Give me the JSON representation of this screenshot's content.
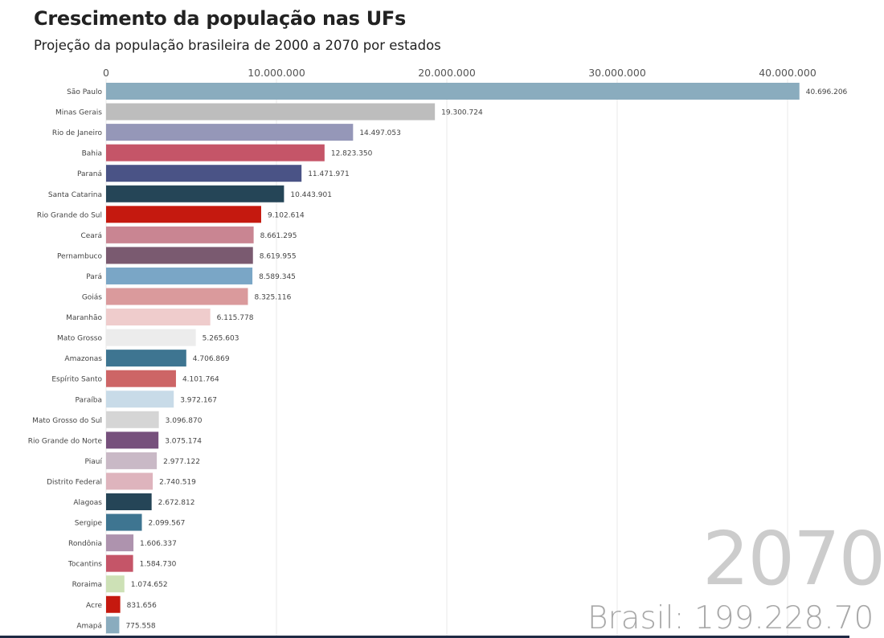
{
  "header": {
    "title": "Crescimento da população nas UFs",
    "subtitle": "Projeção da população brasileira de 2000 a 2070 por estados"
  },
  "overlay": {
    "year": "2070",
    "total": "Brasil: 199.228.70"
  },
  "chart_data": {
    "type": "bar",
    "orientation": "horizontal",
    "title": "Crescimento da população nas UFs",
    "subtitle": "Projeção da população brasileira de 2000 a 2070 por estados",
    "xlim": [
      0,
      42400000
    ],
    "x_ticks": [
      0,
      10000000,
      20000000,
      30000000,
      40000000
    ],
    "x_tick_labels": [
      "0",
      "10.000.000",
      "20.000.000",
      "30.000.000",
      "40.000.000"
    ],
    "x_axis_position": "top",
    "grid": true,
    "categories": [
      "São Paulo",
      "Minas Gerais",
      "Rio de Janeiro",
      "Bahia",
      "Paraná",
      "Santa Catarina",
      "Rio Grande do Sul",
      "Ceará",
      "Pernambuco",
      "Pará",
      "Goiás",
      "Maranhão",
      "Mato Grosso",
      "Amazonas",
      "Espírito Santo",
      "Paraíba",
      "Mato Grosso do Sul",
      "Rio Grande do Norte",
      "Piauí",
      "Distrito Federal",
      "Alagoas",
      "Sergipe",
      "Rondônia",
      "Tocantins",
      "Roraima",
      "Acre",
      "Amapá"
    ],
    "values": [
      40696206,
      19300724,
      14497053,
      12823350,
      11471971,
      10443901,
      9102614,
      8661295,
      8619955,
      8589345,
      8325116,
      6115778,
      5265603,
      4706869,
      4101764,
      3972167,
      3096870,
      3075174,
      2977122,
      2740519,
      2672812,
      2099567,
      1606337,
      1584730,
      1074652,
      831656,
      775558
    ],
    "value_labels": [
      "40.696.206",
      "19.300.724",
      "14.497.053",
      "12.823.350",
      "11.471.971",
      "10.443.901",
      "9.102.614",
      "8.661.295",
      "8.619.955",
      "8.589.345",
      "8.325.116",
      "6.115.778",
      "5.265.603",
      "4.706.869",
      "4.101.764",
      "3.972.167",
      "3.096.870",
      "3.075.174",
      "2.977.122",
      "2.740.519",
      "2.672.812",
      "2.099.567",
      "1.606.337",
      "1.584.730",
      "1.074.652",
      "831.656",
      "775.558"
    ],
    "colors": [
      "#8aacbe",
      "#bdbdbd",
      "#9597b8",
      "#c55568",
      "#4a5386",
      "#254557",
      "#c5190f",
      "#c98592",
      "#7a5a70",
      "#7aa6c6",
      "#da9a9c",
      "#efcccc",
      "#ececec",
      "#3e7591",
      "#cd6566",
      "#c8dbe8",
      "#d5d5d5",
      "#76507c",
      "#c9b9c6",
      "#deb4bd",
      "#254557",
      "#3e7591",
      "#ae93ae",
      "#c55568",
      "#cde1b6",
      "#c5190f",
      "#8aacbe"
    ]
  }
}
